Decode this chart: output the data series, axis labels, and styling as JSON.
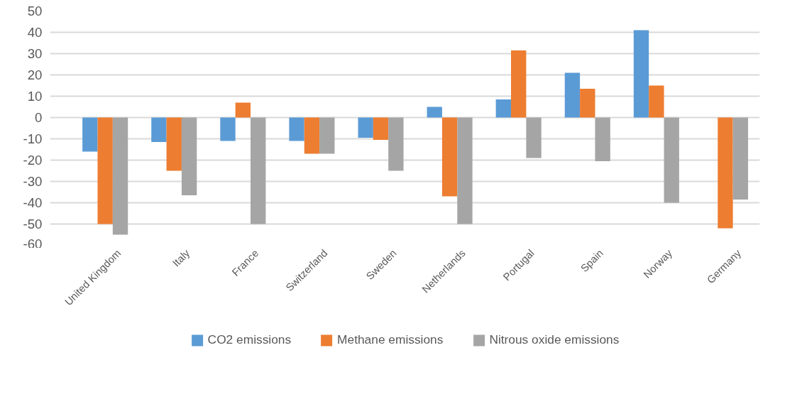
{
  "chart_data": {
    "type": "bar",
    "categories": [
      "United Kingdom",
      "Italy",
      "France",
      "Switzerland",
      "Sweden",
      "Netherlands",
      "Portugal",
      "Spain",
      "Norway",
      "Germany"
    ],
    "series": [
      {
        "name": "CO2 emissions",
        "color": "#5b9bd5",
        "values": [
          -16,
          -11.5,
          -11,
          -11,
          -9.5,
          5,
          8.5,
          21,
          41,
          null
        ]
      },
      {
        "name": "Methane emissions",
        "color": "#ed7d31",
        "values": [
          -50,
          -25,
          7,
          -17,
          -10.5,
          -37,
          31.5,
          13.5,
          15,
          -52
        ]
      },
      {
        "name": "Nitrous oxide emissions",
        "color": "#a5a5a5",
        "values": [
          -55,
          -36.5,
          -50,
          -17,
          -25,
          -50,
          -19,
          -20.5,
          -40,
          -38.5
        ]
      }
    ],
    "ylim": [
      -60,
      50
    ],
    "yticks": [
      -60,
      -50,
      -40,
      -30,
      -20,
      -10,
      0,
      10,
      20,
      30,
      40,
      50
    ],
    "grid": "y",
    "legend": "bottom"
  }
}
